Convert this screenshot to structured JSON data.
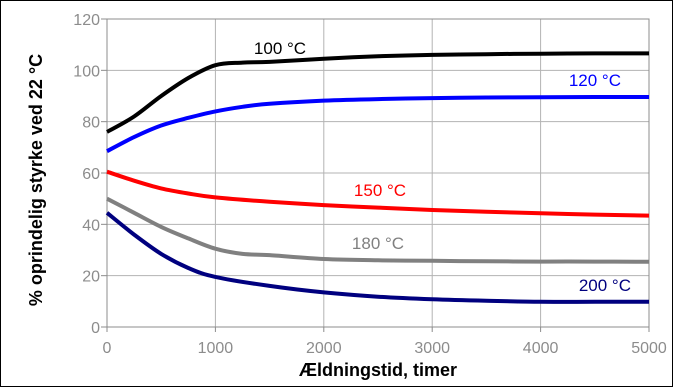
{
  "chart_data": {
    "type": "line",
    "xlabel": "Ældningstid, timer",
    "ylabel": "% oprindelig styrke ved 22 °C",
    "xlim": [
      0,
      5000
    ],
    "ylim": [
      0,
      120
    ],
    "xticks": [
      0,
      1000,
      2000,
      3000,
      4000,
      5000
    ],
    "yticks": [
      0,
      20,
      40,
      60,
      80,
      100,
      120
    ],
    "grid": true,
    "series": [
      {
        "name": "100 °C",
        "color": "#000000",
        "x": [
          0,
          250,
          500,
          750,
          1000,
          1250,
          1500,
          2000,
          2500,
          3000,
          3500,
          4000,
          4500,
          5000
        ],
        "y": [
          76,
          82,
          90,
          97,
          102,
          103,
          103.3,
          104.5,
          105.5,
          106,
          106.3,
          106.5,
          106.6,
          106.6
        ]
      },
      {
        "name": "120 °C",
        "color": "#0000ff",
        "x": [
          0,
          250,
          500,
          750,
          1000,
          1250,
          1500,
          2000,
          2500,
          3000,
          3500,
          4000,
          4500,
          5000
        ],
        "y": [
          68.5,
          74,
          78.5,
          81.5,
          84,
          85.8,
          87,
          88.2,
          88.8,
          89.2,
          89.4,
          89.5,
          89.6,
          89.6
        ]
      },
      {
        "name": "150 °C",
        "color": "#ff0000",
        "x": [
          0,
          250,
          500,
          750,
          1000,
          1500,
          2000,
          2500,
          3000,
          3500,
          4000,
          4500,
          5000
        ],
        "y": [
          60.5,
          57,
          54,
          52,
          50.5,
          48.8,
          47.5,
          46.5,
          45.6,
          44.9,
          44.3,
          43.8,
          43.4
        ]
      },
      {
        "name": "180 °C",
        "color": "#808080",
        "x": [
          0,
          250,
          500,
          750,
          1000,
          1250,
          1500,
          2000,
          2500,
          3000,
          3500,
          4000,
          4500,
          5000
        ],
        "y": [
          50,
          44.5,
          39,
          34.5,
          30.5,
          28.5,
          28,
          26.5,
          26,
          25.8,
          25.6,
          25.5,
          25.5,
          25.4
        ]
      },
      {
        "name": "200 °C",
        "color": "#00007f",
        "x": [
          0,
          250,
          500,
          750,
          1000,
          1500,
          2000,
          2500,
          3000,
          3500,
          4000,
          4500,
          5000
        ],
        "y": [
          44.5,
          36,
          28.5,
          23,
          19.5,
          16,
          13.5,
          11.8,
          10.8,
          10.2,
          9.8,
          9.8,
          9.8
        ]
      }
    ]
  }
}
